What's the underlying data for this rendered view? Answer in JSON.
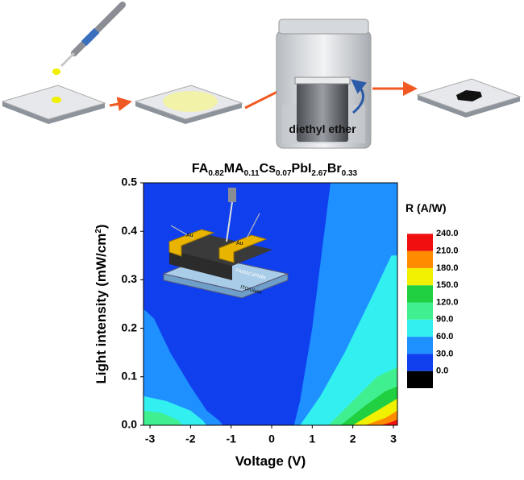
{
  "chart_data": {
    "type": "contour",
    "title_parts": [
      {
        "text": "FA"
      },
      {
        "text": "0.82",
        "shift": "sub"
      },
      {
        "text": "MA"
      },
      {
        "text": "0.11",
        "shift": "sub"
      },
      {
        "text": "Cs"
      },
      {
        "text": "0.07",
        "shift": "sub"
      },
      {
        "text": "PbI"
      },
      {
        "text": "2.67",
        "shift": "sub"
      },
      {
        "text": "Br"
      },
      {
        "text": "0.33",
        "shift": "sub"
      }
    ],
    "xlabel": "Voltage (V)",
    "ylabel_parts": [
      {
        "text": "Light intensity (mW/cm"
      },
      {
        "text": "2",
        "shift": "sup"
      },
      {
        "text": ")"
      }
    ],
    "xlim": [
      -3.16,
      3.1
    ],
    "xticks": [
      -3,
      -2,
      -1,
      0,
      1,
      2,
      3
    ],
    "ylim": [
      0,
      0.5
    ],
    "yticks": [
      {
        "value": 0,
        "label": "0.0"
      },
      0.1,
      0.2,
      0.3,
      0.4,
      0.5
    ],
    "colorbar": {
      "title": "R (A/W)",
      "levels": [
        {
          "value": 0,
          "label": "0.0"
        },
        {
          "value": 30,
          "label": "30.0"
        },
        {
          "value": 60,
          "label": "60.0"
        },
        {
          "value": 90,
          "label": "90.0"
        },
        {
          "value": 120,
          "label": "120.0"
        },
        {
          "value": 150,
          "label": "150.0"
        },
        {
          "value": 180,
          "label": "180.0"
        },
        {
          "value": 210,
          "label": "210.0"
        },
        {
          "value": 240,
          "label": "240.0"
        }
      ],
      "colors": [
        "#000000",
        "#1040ee",
        "#1e90ff",
        "#33f0f0",
        "#40f090",
        "#20d040",
        "#f0f000",
        "#ff8c00",
        "#f01010"
      ]
    },
    "contours": [
      {
        "level": 2,
        "x": [
          -3.16,
          -2.9,
          -2.5,
          -2.0,
          -1.6,
          -1.3,
          -1.2,
          -3.16
        ],
        "y": [
          0.24,
          0.22,
          0.15,
          0.08,
          0.03,
          0.01,
          0,
          0
        ]
      },
      {
        "level": 3,
        "x": [
          -3.16,
          -2.6,
          -2.0,
          -1.7,
          -1.6,
          -3.16
        ],
        "y": [
          0.06,
          0.05,
          0.03,
          0.01,
          0,
          0
        ]
      },
      {
        "level": 4,
        "x": [
          -3.16,
          -2.7,
          -2.3,
          -2.2,
          -3.16
        ],
        "y": [
          0.03,
          0.025,
          0.01,
          0,
          0
        ]
      },
      {
        "level": 2,
        "x": [
          0.55,
          0.7,
          1.0,
          1.45,
          3.1,
          3.1
        ],
        "y": [
          0,
          0.05,
          0.2,
          0.5,
          0.5,
          0
        ]
      },
      {
        "level": 3,
        "x": [
          0.7,
          1.2,
          1.8,
          2.5,
          2.95,
          3.1,
          3.1
        ],
        "y": [
          0,
          0.06,
          0.15,
          0.27,
          0.35,
          0.35,
          0
        ]
      },
      {
        "level": 4,
        "x": [
          1.4,
          2.0,
          2.6,
          3.1,
          3.1
        ],
        "y": [
          0,
          0.05,
          0.1,
          0.12,
          0
        ]
      },
      {
        "level": 5,
        "x": [
          1.7,
          2.3,
          2.8,
          3.1,
          3.1
        ],
        "y": [
          0,
          0.04,
          0.07,
          0.08,
          0
        ]
      },
      {
        "level": 6,
        "x": [
          2.0,
          2.6,
          3.1,
          3.1
        ],
        "y": [
          0,
          0.03,
          0.055,
          0
        ]
      },
      {
        "level": 7,
        "x": [
          2.3,
          2.8,
          3.1,
          3.1
        ],
        "y": [
          0,
          0.015,
          0.03,
          0
        ]
      },
      {
        "level": 8,
        "x": [
          2.7,
          3.0,
          3.1,
          3.1
        ],
        "y": [
          0,
          0.008,
          0.012,
          0
        ]
      }
    ],
    "annotations": {
      "solvent": "diethyl ether",
      "electrode_left": "Au",
      "electrode_right": "Au",
      "layer": "FAMACsPbIBr",
      "substrate": "ITO/Glass"
    }
  }
}
